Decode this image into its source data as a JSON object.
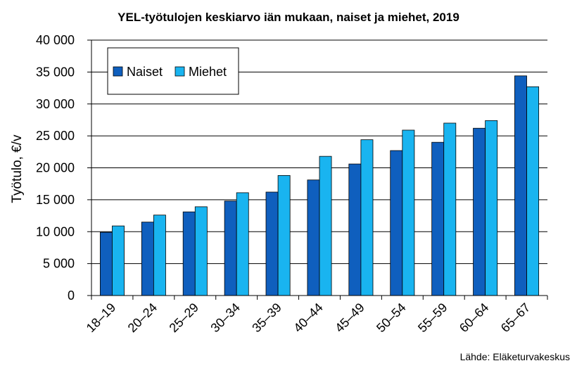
{
  "chart_data": {
    "type": "bar",
    "title": "YEL-työtulojen keskiarvo iän mukaan, naiset ja miehet, 2019",
    "xlabel": "",
    "ylabel": "Työtulo, €/v",
    "ylim": [
      0,
      40000
    ],
    "yticks": [
      "0",
      "5 000",
      "10 000",
      "15 000",
      "20 000",
      "25 000",
      "30 000",
      "35 000",
      "40 000"
    ],
    "categories": [
      "18–19",
      "20–24",
      "25–29",
      "30–34",
      "35–39",
      "40–44",
      "45–49",
      "50–54",
      "55–59",
      "60–64",
      "65–67"
    ],
    "series": [
      {
        "name": "Naiset",
        "color": "#0f5fbe",
        "values": [
          9900,
          11500,
          13100,
          14800,
          16200,
          18100,
          20600,
          22700,
          24000,
          26200,
          34400
        ]
      },
      {
        "name": "Miehet",
        "color": "#19b4f0",
        "values": [
          10900,
          12600,
          13900,
          16100,
          18800,
          21800,
          24400,
          25900,
          27000,
          27400,
          32700
        ]
      }
    ],
    "grid": true,
    "legend": "top-left",
    "source": "Lähde: Eläketurvakeskus"
  }
}
